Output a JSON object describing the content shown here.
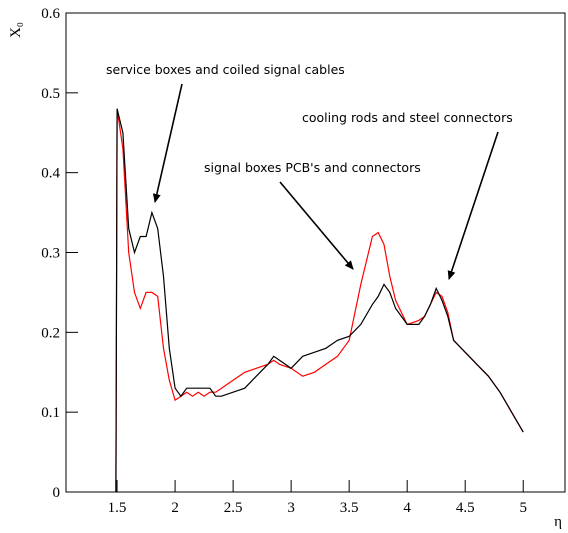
{
  "chart_data": {
    "type": "line",
    "y_label": "X₀",
    "x_label": "η",
    "annotations": [
      "service boxes and coiled signal cables",
      "cooling rods and steel connectors",
      "signal boxes PCB's and connectors"
    ],
    "x": [
      1.49,
      1.5,
      1.55,
      1.6,
      1.65,
      1.7,
      1.75,
      1.8,
      1.85,
      1.9,
      1.95,
      2.0,
      2.05,
      2.1,
      2.15,
      2.2,
      2.25,
      2.3,
      2.35,
      2.4,
      2.5,
      2.6,
      2.7,
      2.8,
      2.85,
      2.9,
      3.0,
      3.1,
      3.2,
      3.3,
      3.4,
      3.5,
      3.6,
      3.7,
      3.75,
      3.8,
      3.85,
      3.9,
      4.0,
      4.1,
      4.15,
      4.2,
      4.25,
      4.3,
      4.35,
      4.4,
      4.5,
      4.6,
      4.7,
      4.8,
      4.9,
      5.0
    ],
    "series": [
      {
        "color": "#000000",
        "values": [
          0,
          0.48,
          0.45,
          0.33,
          0.3,
          0.32,
          0.32,
          0.35,
          0.33,
          0.27,
          0.18,
          0.13,
          0.12,
          0.13,
          0.13,
          0.13,
          0.13,
          0.13,
          0.12,
          0.12,
          0.125,
          0.13,
          0.145,
          0.16,
          0.17,
          0.165,
          0.155,
          0.17,
          0.175,
          0.18,
          0.19,
          0.195,
          0.21,
          0.235,
          0.245,
          0.26,
          0.25,
          0.23,
          0.21,
          0.21,
          0.22,
          0.235,
          0.255,
          0.24,
          0.22,
          0.19,
          0.175,
          0.16,
          0.145,
          0.125,
          0.1,
          0.075
        ]
      },
      {
        "color": "#ff0000",
        "values": [
          0,
          0.48,
          0.43,
          0.3,
          0.25,
          0.23,
          0.25,
          0.25,
          0.245,
          0.18,
          0.14,
          0.115,
          0.12,
          0.125,
          0.12,
          0.125,
          0.12,
          0.125,
          0.125,
          0.13,
          0.14,
          0.15,
          0.155,
          0.16,
          0.165,
          0.16,
          0.155,
          0.145,
          0.15,
          0.16,
          0.17,
          0.19,
          0.26,
          0.32,
          0.325,
          0.31,
          0.27,
          0.24,
          0.21,
          0.215,
          0.22,
          0.235,
          0.25,
          0.245,
          0.225,
          0.19,
          0.175,
          0.16,
          0.145,
          0.125,
          0.1,
          0.075
        ]
      }
    ],
    "xlim": [
      1.06,
      5.36
    ],
    "ylim": [
      0,
      0.6
    ],
    "xticks": [
      1.5,
      2,
      2.5,
      3,
      3.5,
      4,
      4.5,
      5
    ],
    "yticks": [
      0,
      0.1,
      0.2,
      0.3,
      0.4,
      0.5,
      0.6
    ]
  }
}
